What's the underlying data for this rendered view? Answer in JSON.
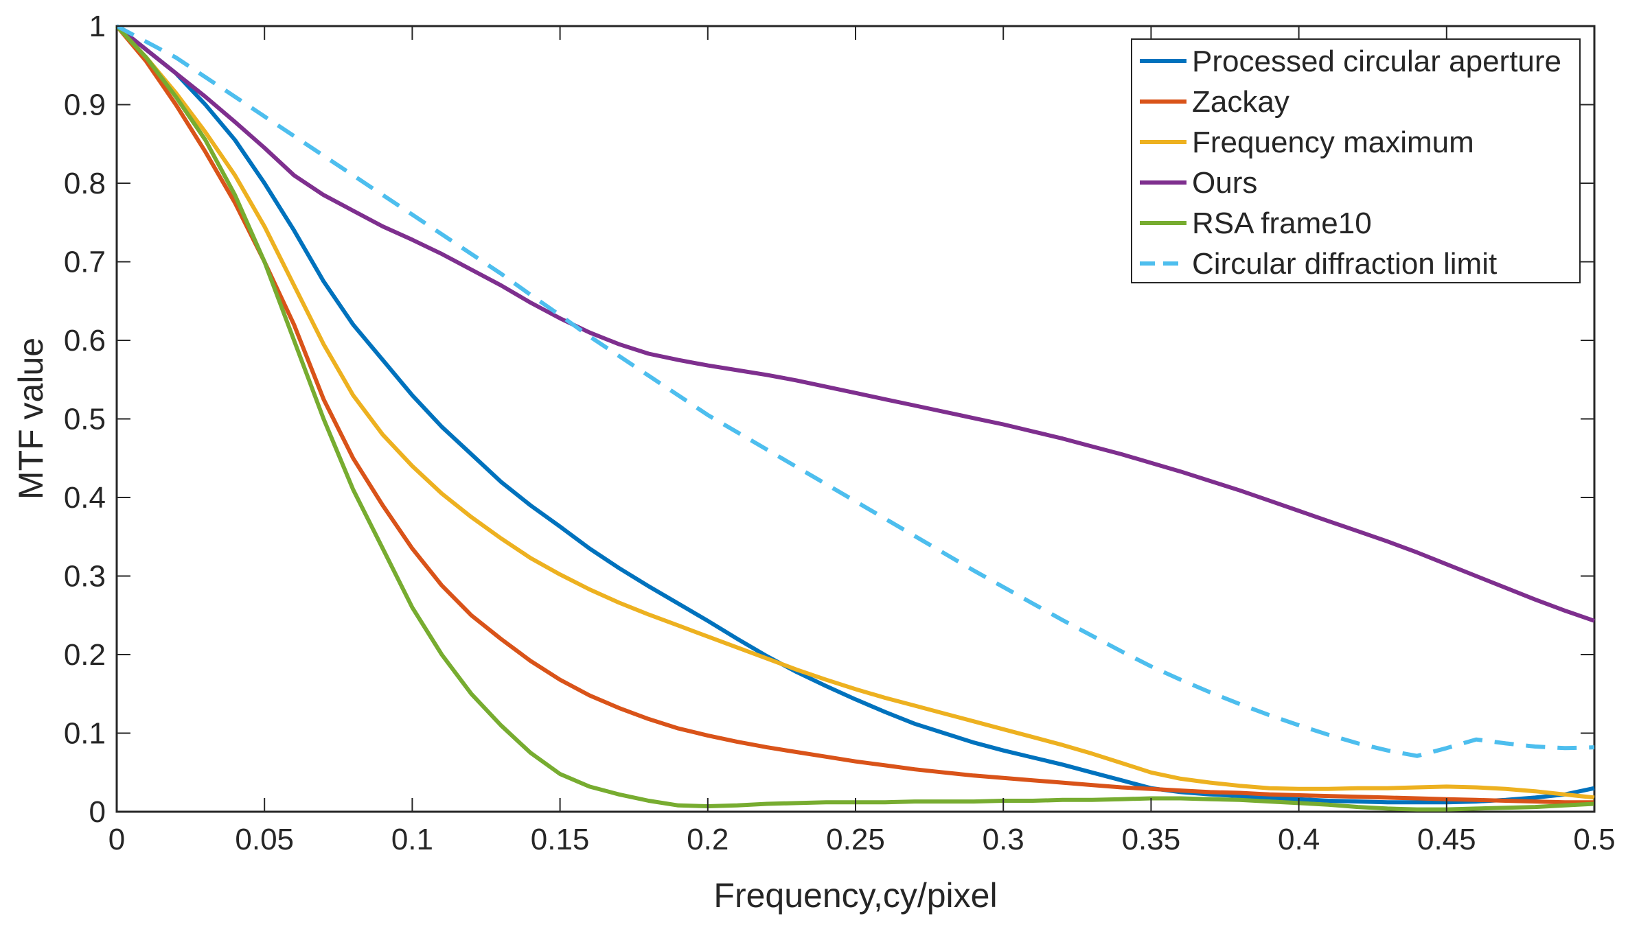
{
  "chart_data": {
    "type": "line",
    "title": "",
    "xlabel": "Frequency,cy/pixel",
    "ylabel": "MTF value",
    "xlim": [
      0,
      0.5
    ],
    "ylim": [
      0,
      1
    ],
    "xticks": [
      "0",
      "0.05",
      "0.1",
      "0.15",
      "0.2",
      "0.25",
      "0.3",
      "0.35",
      "0.4",
      "0.45",
      "0.5"
    ],
    "yticks": [
      "0",
      "0.1",
      "0.2",
      "0.3",
      "0.4",
      "0.5",
      "0.6",
      "0.7",
      "0.8",
      "0.9",
      "1"
    ],
    "grid": false,
    "legend_position": "top-right",
    "series": [
      {
        "name": "Processed circular aperture",
        "color": "#0072BD",
        "dashed": false,
        "x": [
          0,
          0.01,
          0.02,
          0.03,
          0.04,
          0.05,
          0.06,
          0.07,
          0.08,
          0.09,
          0.1,
          0.11,
          0.12,
          0.13,
          0.14,
          0.15,
          0.16,
          0.17,
          0.18,
          0.19,
          0.2,
          0.21,
          0.22,
          0.23,
          0.24,
          0.25,
          0.26,
          0.27,
          0.28,
          0.29,
          0.3,
          0.31,
          0.32,
          0.33,
          0.34,
          0.35,
          0.36,
          0.37,
          0.38,
          0.39,
          0.4,
          0.41,
          0.42,
          0.43,
          0.44,
          0.45,
          0.46,
          0.47,
          0.48,
          0.49,
          0.5
        ],
        "values": [
          1.0,
          0.97,
          0.94,
          0.9,
          0.855,
          0.8,
          0.74,
          0.675,
          0.62,
          0.575,
          0.53,
          0.49,
          0.455,
          0.42,
          0.39,
          0.363,
          0.335,
          0.31,
          0.287,
          0.265,
          0.243,
          0.22,
          0.198,
          0.178,
          0.16,
          0.143,
          0.127,
          0.112,
          0.1,
          0.088,
          0.078,
          0.069,
          0.06,
          0.05,
          0.04,
          0.03,
          0.025,
          0.022,
          0.02,
          0.018,
          0.016,
          0.014,
          0.013,
          0.012,
          0.012,
          0.012,
          0.013,
          0.015,
          0.018,
          0.022,
          0.03
        ]
      },
      {
        "name": "Zackay",
        "color": "#D95319",
        "dashed": false,
        "x": [
          0,
          0.01,
          0.02,
          0.03,
          0.04,
          0.05,
          0.06,
          0.07,
          0.08,
          0.09,
          0.1,
          0.11,
          0.12,
          0.13,
          0.14,
          0.15,
          0.16,
          0.17,
          0.18,
          0.19,
          0.2,
          0.21,
          0.22,
          0.23,
          0.24,
          0.25,
          0.26,
          0.27,
          0.28,
          0.29,
          0.3,
          0.31,
          0.32,
          0.33,
          0.34,
          0.35,
          0.36,
          0.37,
          0.38,
          0.39,
          0.4,
          0.41,
          0.42,
          0.43,
          0.44,
          0.45,
          0.46,
          0.47,
          0.48,
          0.49,
          0.5
        ],
        "values": [
          1.0,
          0.955,
          0.9,
          0.84,
          0.775,
          0.7,
          0.62,
          0.525,
          0.45,
          0.39,
          0.335,
          0.288,
          0.25,
          0.22,
          0.192,
          0.168,
          0.148,
          0.132,
          0.118,
          0.106,
          0.097,
          0.089,
          0.082,
          0.076,
          0.07,
          0.064,
          0.059,
          0.054,
          0.05,
          0.046,
          0.043,
          0.04,
          0.037,
          0.034,
          0.031,
          0.029,
          0.027,
          0.025,
          0.024,
          0.022,
          0.021,
          0.02,
          0.019,
          0.018,
          0.017,
          0.016,
          0.015,
          0.014,
          0.013,
          0.012,
          0.012
        ]
      },
      {
        "name": "Frequency maximum",
        "color": "#EDB120",
        "dashed": false,
        "x": [
          0,
          0.01,
          0.02,
          0.03,
          0.04,
          0.05,
          0.06,
          0.07,
          0.08,
          0.09,
          0.1,
          0.11,
          0.12,
          0.13,
          0.14,
          0.15,
          0.16,
          0.17,
          0.18,
          0.19,
          0.2,
          0.21,
          0.22,
          0.23,
          0.24,
          0.25,
          0.26,
          0.27,
          0.28,
          0.29,
          0.3,
          0.31,
          0.32,
          0.33,
          0.34,
          0.35,
          0.36,
          0.37,
          0.38,
          0.39,
          0.4,
          0.41,
          0.42,
          0.43,
          0.44,
          0.45,
          0.46,
          0.47,
          0.48,
          0.49,
          0.5
        ],
        "values": [
          1.0,
          0.96,
          0.915,
          0.865,
          0.81,
          0.745,
          0.67,
          0.595,
          0.53,
          0.48,
          0.44,
          0.405,
          0.375,
          0.348,
          0.323,
          0.302,
          0.283,
          0.266,
          0.251,
          0.237,
          0.223,
          0.209,
          0.195,
          0.181,
          0.168,
          0.156,
          0.145,
          0.135,
          0.125,
          0.115,
          0.105,
          0.095,
          0.085,
          0.074,
          0.062,
          0.05,
          0.042,
          0.037,
          0.033,
          0.03,
          0.029,
          0.029,
          0.03,
          0.03,
          0.031,
          0.032,
          0.031,
          0.029,
          0.026,
          0.022,
          0.018
        ]
      },
      {
        "name": "Ours",
        "color": "#7E2F8E",
        "dashed": false,
        "x": [
          0,
          0.01,
          0.02,
          0.03,
          0.04,
          0.05,
          0.06,
          0.07,
          0.08,
          0.09,
          0.1,
          0.11,
          0.12,
          0.13,
          0.14,
          0.15,
          0.16,
          0.17,
          0.18,
          0.19,
          0.2,
          0.21,
          0.22,
          0.23,
          0.24,
          0.25,
          0.26,
          0.27,
          0.28,
          0.29,
          0.3,
          0.31,
          0.32,
          0.33,
          0.34,
          0.35,
          0.36,
          0.37,
          0.38,
          0.39,
          0.4,
          0.41,
          0.42,
          0.43,
          0.44,
          0.45,
          0.46,
          0.47,
          0.48,
          0.49,
          0.5
        ],
        "values": [
          1.0,
          0.97,
          0.94,
          0.91,
          0.878,
          0.845,
          0.81,
          0.785,
          0.765,
          0.745,
          0.728,
          0.71,
          0.69,
          0.67,
          0.648,
          0.628,
          0.61,
          0.595,
          0.583,
          0.575,
          0.568,
          0.562,
          0.556,
          0.549,
          0.541,
          0.533,
          0.525,
          0.517,
          0.509,
          0.501,
          0.493,
          0.484,
          0.475,
          0.465,
          0.455,
          0.444,
          0.433,
          0.421,
          0.409,
          0.396,
          0.383,
          0.37,
          0.357,
          0.344,
          0.33,
          0.315,
          0.3,
          0.285,
          0.27,
          0.256,
          0.243
        ]
      },
      {
        "name": "RSA frame10",
        "color": "#77AC30",
        "dashed": false,
        "x": [
          0,
          0.01,
          0.02,
          0.03,
          0.04,
          0.05,
          0.06,
          0.07,
          0.08,
          0.09,
          0.1,
          0.11,
          0.12,
          0.13,
          0.14,
          0.15,
          0.16,
          0.17,
          0.18,
          0.19,
          0.2,
          0.21,
          0.22,
          0.23,
          0.24,
          0.25,
          0.26,
          0.27,
          0.28,
          0.29,
          0.3,
          0.31,
          0.32,
          0.33,
          0.34,
          0.35,
          0.36,
          0.37,
          0.38,
          0.39,
          0.4,
          0.41,
          0.42,
          0.43,
          0.44,
          0.45,
          0.46,
          0.47,
          0.48,
          0.49,
          0.5
        ],
        "values": [
          1.0,
          0.96,
          0.91,
          0.855,
          0.785,
          0.7,
          0.6,
          0.5,
          0.41,
          0.335,
          0.26,
          0.2,
          0.15,
          0.11,
          0.075,
          0.048,
          0.032,
          0.022,
          0.014,
          0.008,
          0.007,
          0.008,
          0.01,
          0.011,
          0.012,
          0.012,
          0.012,
          0.013,
          0.013,
          0.013,
          0.014,
          0.014,
          0.015,
          0.015,
          0.016,
          0.017,
          0.017,
          0.016,
          0.015,
          0.013,
          0.011,
          0.009,
          0.006,
          0.004,
          0.003,
          0.003,
          0.004,
          0.005,
          0.006,
          0.008,
          0.01
        ]
      },
      {
        "name": "Circular diffraction limit",
        "color": "#4DBEEE",
        "dashed": true,
        "x": [
          0,
          0.01,
          0.02,
          0.03,
          0.04,
          0.05,
          0.06,
          0.07,
          0.08,
          0.09,
          0.1,
          0.11,
          0.12,
          0.13,
          0.14,
          0.15,
          0.16,
          0.17,
          0.18,
          0.19,
          0.2,
          0.21,
          0.22,
          0.23,
          0.24,
          0.25,
          0.26,
          0.27,
          0.28,
          0.29,
          0.3,
          0.31,
          0.32,
          0.33,
          0.34,
          0.35,
          0.36,
          0.37,
          0.38,
          0.39,
          0.4,
          0.41,
          0.42,
          0.43,
          0.44,
          0.45,
          0.46,
          0.47,
          0.48,
          0.49,
          0.5
        ],
        "values": [
          1.0,
          0.98,
          0.96,
          0.935,
          0.91,
          0.885,
          0.86,
          0.835,
          0.81,
          0.785,
          0.76,
          0.735,
          0.71,
          0.685,
          0.658,
          0.632,
          0.605,
          0.58,
          0.555,
          0.53,
          0.505,
          0.483,
          0.461,
          0.439,
          0.417,
          0.395,
          0.373,
          0.351,
          0.329,
          0.307,
          0.286,
          0.265,
          0.244,
          0.224,
          0.204,
          0.185,
          0.168,
          0.152,
          0.137,
          0.123,
          0.11,
          0.098,
          0.087,
          0.078,
          0.071,
          0.081,
          0.092,
          0.087,
          0.083,
          0.081,
          0.082
        ]
      }
    ]
  }
}
